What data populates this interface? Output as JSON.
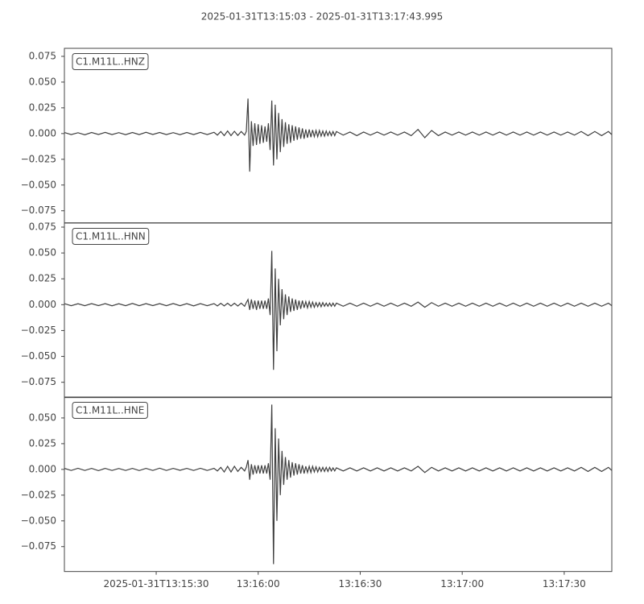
{
  "title": "2025-01-31T13:15:03  -  2025-01-31T13:17:43.995",
  "chart_data": [
    {
      "type": "line",
      "label": "C1.M11L..HNZ",
      "color": "#3f3f3f",
      "xlim": [
        0,
        160.995
      ],
      "ylim": [
        -0.0867,
        0.0828
      ],
      "yticks": [
        0.075,
        {
          "value": 0.05,
          "label": "0.050"
        },
        0.025,
        {
          "value": 0,
          "label": "0.000"
        },
        {
          "value": -0.025,
          "label": "−0.025"
        },
        {
          "value": -0.05,
          "label": "−0.050"
        },
        {
          "value": -0.075,
          "label": "−0.075"
        }
      ],
      "x": [
        0,
        2,
        4,
        6,
        8,
        10,
        12,
        14,
        16,
        18,
        20,
        22,
        24,
        26,
        28,
        30,
        32,
        34,
        36,
        38,
        40,
        42,
        44,
        45,
        46,
        47,
        48,
        49,
        50,
        51,
        52,
        53,
        53.5,
        54,
        54.5,
        55,
        55.5,
        56,
        56.5,
        57,
        57.5,
        58,
        58.5,
        59,
        59.5,
        60,
        60.5,
        61,
        61.5,
        62,
        62.5,
        63,
        63.5,
        64,
        64.5,
        65,
        65.5,
        66,
        66.5,
        67,
        67.5,
        68,
        68.5,
        69,
        69.5,
        70,
        70.5,
        71,
        71.5,
        72,
        72.5,
        73,
        73.5,
        74,
        74.5,
        75,
        75.5,
        76,
        76.5,
        77,
        77.5,
        78,
        78.5,
        79,
        79.5,
        80,
        82,
        84,
        86,
        88,
        90,
        92,
        94,
        96,
        98,
        100,
        102,
        104,
        106,
        108,
        110,
        112,
        114,
        116,
        118,
        120,
        122,
        124,
        126,
        128,
        130,
        132,
        134,
        136,
        138,
        140,
        142,
        144,
        146,
        148,
        150,
        152,
        154,
        156,
        158,
        160,
        160.995
      ],
      "values": [
        0.001,
        -0.001,
        0.0008,
        -0.0012,
        0.001,
        -0.0009,
        0.0011,
        -0.001,
        0.0009,
        -0.0011,
        0.001,
        -0.001,
        0.0012,
        -0.0009,
        0.001,
        -0.001,
        0.0009,
        -0.0011,
        0.001,
        -0.001,
        0.0011,
        -0.001,
        0.0012,
        -0.0015,
        0.002,
        -0.002,
        0.0025,
        -0.002,
        0.0022,
        -0.0018,
        0.002,
        -0.0015,
        0.002,
        0.034,
        -0.037,
        0.012,
        -0.012,
        0.01,
        -0.011,
        0.009,
        -0.01,
        0.008,
        -0.009,
        0.007,
        -0.008,
        0.01,
        -0.016,
        0.032,
        -0.031,
        0.028,
        -0.025,
        0.02,
        -0.018,
        0.014,
        -0.013,
        0.011,
        -0.01,
        0.009,
        -0.009,
        0.008,
        -0.007,
        0.007,
        -0.006,
        0.006,
        -0.005,
        0.005,
        -0.005,
        0.004,
        -0.004,
        0.004,
        -0.0035,
        0.0035,
        -0.003,
        0.003,
        -0.003,
        0.003,
        -0.0025,
        0.0025,
        -0.0025,
        0.0025,
        -0.002,
        0.002,
        -0.002,
        0.002,
        -0.002,
        0.002,
        -0.0015,
        0.0015,
        -0.002,
        0.0015,
        -0.0015,
        0.0015,
        -0.0015,
        0.0015,
        -0.0015,
        0.0015,
        -0.002,
        0.004,
        -0.004,
        0.003,
        -0.002,
        0.0015,
        -0.0015,
        0.0015,
        -0.0015,
        0.0015,
        -0.0015,
        0.0015,
        -0.0015,
        0.0015,
        -0.0015,
        0.0015,
        -0.0015,
        0.0015,
        -0.0015,
        0.0015,
        -0.0015,
        0.0015,
        -0.0015,
        0.0015,
        -0.0015,
        0.002,
        -0.002,
        0.002,
        -0.002,
        0.002,
        -0.001
      ]
    },
    {
      "type": "line",
      "label": "C1.M11L..HNN",
      "color": "#3f3f3f",
      "xlim": [
        0,
        160.995
      ],
      "ylim": [
        -0.0898,
        0.0789
      ],
      "yticks": [
        0.075,
        {
          "value": 0.05,
          "label": "0.050"
        },
        0.025,
        {
          "value": 0,
          "label": "0.000"
        },
        {
          "value": -0.025,
          "label": "−0.025"
        },
        {
          "value": -0.05,
          "label": "−0.050"
        },
        {
          "value": -0.075,
          "label": "−0.075"
        }
      ],
      "x": [
        0,
        2,
        4,
        6,
        8,
        10,
        12,
        14,
        16,
        18,
        20,
        22,
        24,
        26,
        28,
        30,
        32,
        34,
        36,
        38,
        40,
        42,
        44,
        45,
        46,
        47,
        48,
        49,
        50,
        51,
        52,
        53,
        53.5,
        54,
        54.5,
        55,
        55.5,
        56,
        56.5,
        57,
        57.5,
        58,
        58.5,
        59,
        59.5,
        60,
        60.5,
        61,
        61.5,
        62,
        62.5,
        63,
        63.5,
        64,
        64.5,
        65,
        65.5,
        66,
        66.5,
        67,
        67.5,
        68,
        68.5,
        69,
        69.5,
        70,
        70.5,
        71,
        71.5,
        72,
        72.5,
        73,
        73.5,
        74,
        74.5,
        75,
        75.5,
        76,
        76.5,
        77,
        77.5,
        78,
        78.5,
        79,
        79.5,
        80,
        82,
        84,
        86,
        88,
        90,
        92,
        94,
        96,
        98,
        100,
        102,
        104,
        106,
        108,
        110,
        112,
        114,
        116,
        118,
        120,
        122,
        124,
        126,
        128,
        130,
        132,
        134,
        136,
        138,
        140,
        142,
        144,
        146,
        148,
        150,
        152,
        154,
        156,
        158,
        160,
        160.995
      ],
      "values": [
        0.001,
        -0.001,
        0.0009,
        -0.001,
        0.001,
        -0.0009,
        0.001,
        -0.0011,
        0.0009,
        -0.001,
        0.0012,
        -0.001,
        0.001,
        -0.0009,
        0.001,
        -0.001,
        0.0011,
        -0.001,
        0.001,
        -0.0012,
        0.001,
        -0.001,
        0.001,
        -0.0012,
        0.0013,
        -0.0012,
        0.0014,
        -0.0013,
        0.0014,
        -0.0013,
        0.0015,
        -0.0015,
        0.002,
        0.005,
        -0.005,
        0.005,
        -0.004,
        0.004,
        -0.005,
        0.004,
        -0.004,
        0.004,
        -0.004,
        0.004,
        -0.004,
        0.006,
        -0.01,
        0.052,
        -0.063,
        0.035,
        -0.045,
        0.025,
        -0.02,
        0.015,
        -0.014,
        0.01,
        -0.01,
        0.008,
        -0.007,
        0.006,
        -0.006,
        0.005,
        -0.005,
        0.004,
        -0.004,
        0.004,
        -0.003,
        0.003,
        -0.003,
        0.003,
        -0.0025,
        0.0025,
        -0.0025,
        0.002,
        -0.002,
        0.002,
        -0.002,
        0.002,
        -0.0015,
        0.0015,
        -0.0015,
        0.0015,
        -0.0015,
        0.0015,
        -0.0015,
        0.0015,
        -0.0015,
        0.0015,
        -0.0015,
        0.0015,
        -0.0015,
        0.0015,
        -0.0015,
        0.0015,
        -0.0015,
        0.0015,
        -0.0015,
        0.0025,
        -0.0025,
        0.002,
        -0.0015,
        0.0015,
        -0.0015,
        0.0015,
        -0.0015,
        0.0015,
        -0.0015,
        0.0015,
        -0.0015,
        0.0015,
        -0.0015,
        0.0015,
        -0.0015,
        0.0015,
        -0.0015,
        0.0015,
        -0.0015,
        0.0015,
        -0.0015,
        0.0015,
        -0.0015,
        0.0015,
        -0.0015,
        0.0015,
        -0.0015,
        0.0015,
        -0.001
      ]
    },
    {
      "type": "line",
      "label": "C1.M11L..HNE",
      "color": "#3f3f3f",
      "xlim": [
        0,
        160.995
      ],
      "ylim": [
        -0.0992,
        0.0703
      ],
      "yticks": [
        {
          "value": 0.05,
          "label": "0.050"
        },
        0.025,
        {
          "value": 0,
          "label": "0.000"
        },
        {
          "value": -0.025,
          "label": "−0.025"
        },
        {
          "value": -0.05,
          "label": "−0.050"
        },
        {
          "value": -0.075,
          "label": "−0.075"
        }
      ],
      "xticks": [
        {
          "value": 27,
          "label": "2025-01-31T13:15:30"
        },
        {
          "value": 57,
          "label": "13:16:00"
        },
        {
          "value": 87,
          "label": "13:16:30"
        },
        {
          "value": 117,
          "label": "13:17:00"
        },
        {
          "value": 147,
          "label": "13:17:30"
        }
      ],
      "x": [
        0,
        2,
        4,
        6,
        8,
        10,
        12,
        14,
        16,
        18,
        20,
        22,
        24,
        26,
        28,
        30,
        32,
        34,
        36,
        38,
        40,
        42,
        44,
        45,
        46,
        47,
        48,
        49,
        50,
        51,
        52,
        53,
        53.5,
        54,
        54.5,
        55,
        55.5,
        56,
        56.5,
        57,
        57.5,
        58,
        58.5,
        59,
        59.5,
        60,
        60.5,
        61,
        61.5,
        62,
        62.5,
        63,
        63.5,
        64,
        64.5,
        65,
        65.5,
        66,
        66.5,
        67,
        67.5,
        68,
        68.5,
        69,
        69.5,
        70,
        70.5,
        71,
        71.5,
        72,
        72.5,
        73,
        73.5,
        74,
        74.5,
        75,
        75.5,
        76,
        76.5,
        77,
        77.5,
        78,
        78.5,
        79,
        79.5,
        80,
        82,
        84,
        86,
        88,
        90,
        92,
        94,
        96,
        98,
        100,
        102,
        104,
        106,
        108,
        110,
        112,
        114,
        116,
        118,
        120,
        122,
        124,
        126,
        128,
        130,
        132,
        134,
        136,
        138,
        140,
        142,
        144,
        146,
        148,
        150,
        152,
        154,
        156,
        158,
        160,
        160.995
      ],
      "values": [
        0.001,
        -0.001,
        0.0011,
        -0.001,
        0.001,
        -0.0012,
        0.001,
        -0.001,
        0.0009,
        -0.001,
        0.001,
        -0.0011,
        0.001,
        -0.001,
        0.0012,
        -0.001,
        0.001,
        -0.0009,
        0.001,
        -0.001,
        0.0011,
        -0.001,
        0.001,
        -0.0015,
        0.002,
        -0.0025,
        0.003,
        -0.0025,
        0.003,
        -0.002,
        0.002,
        -0.0015,
        0.002,
        0.009,
        -0.01,
        0.005,
        -0.005,
        0.004,
        -0.004,
        0.004,
        -0.004,
        0.004,
        -0.004,
        0.004,
        -0.004,
        0.006,
        -0.01,
        0.063,
        -0.092,
        0.04,
        -0.05,
        0.03,
        -0.025,
        0.018,
        -0.015,
        0.012,
        -0.01,
        0.009,
        -0.008,
        0.007,
        -0.006,
        0.006,
        -0.005,
        0.005,
        -0.004,
        0.004,
        -0.004,
        0.003,
        -0.003,
        0.003,
        -0.003,
        0.003,
        -0.0025,
        0.0025,
        -0.0025,
        0.002,
        -0.002,
        0.002,
        -0.002,
        0.002,
        -0.002,
        0.002,
        -0.0015,
        0.0015,
        -0.0015,
        0.0015,
        -0.0015,
        0.0015,
        -0.0015,
        0.0015,
        -0.0015,
        0.0015,
        -0.0015,
        0.0015,
        -0.0015,
        0.0015,
        -0.0015,
        0.003,
        -0.003,
        0.002,
        -0.0015,
        0.0015,
        -0.0015,
        0.0015,
        -0.0015,
        0.0015,
        -0.0015,
        0.0015,
        -0.0015,
        0.0015,
        -0.0015,
        0.0015,
        -0.0015,
        0.0015,
        -0.0015,
        0.0015,
        -0.0015,
        0.0015,
        -0.0015,
        0.0015,
        -0.0015,
        0.002,
        -0.002,
        0.002,
        -0.002,
        0.002,
        -0.001
      ]
    }
  ]
}
